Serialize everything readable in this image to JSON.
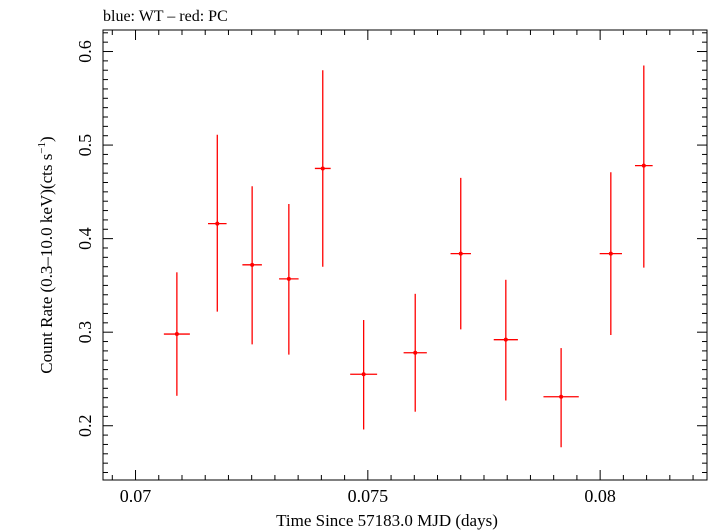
{
  "chart_data": {
    "type": "scatter",
    "title": "blue: WT – red: PC",
    "xlabel": "Time Since 57183.0 MJD (days)",
    "ylabel_main": "Count Rate (0.3–10.0 keV)(cts s",
    "ylabel_sup": "−1",
    "ylabel_end": ")",
    "xlim": [
      0.0693,
      0.0823
    ],
    "ylim": [
      0.142,
      0.623
    ],
    "x_ticks": [
      {
        "value": 0.07,
        "label": "0.07"
      },
      {
        "value": 0.075,
        "label": "0.075"
      },
      {
        "value": 0.08,
        "label": "0.08"
      }
    ],
    "y_ticks": [
      {
        "value": 0.2,
        "label": "0.2"
      },
      {
        "value": 0.3,
        "label": "0.3"
      },
      {
        "value": 0.4,
        "label": "0.4"
      },
      {
        "value": 0.5,
        "label": "0.5"
      },
      {
        "value": 0.6,
        "label": "0.6"
      }
    ],
    "series": [
      {
        "color": "#ff0000",
        "points": [
          {
            "x": 0.07089,
            "xerr": 0.00028,
            "y": 0.298,
            "ylo": 0.232,
            "yhi": 0.364
          },
          {
            "x": 0.07176,
            "xerr": 0.0002,
            "y": 0.416,
            "ylo": 0.322,
            "yhi": 0.511
          },
          {
            "x": 0.07251,
            "xerr": 0.00021,
            "y": 0.372,
            "ylo": 0.287,
            "yhi": 0.456
          },
          {
            "x": 0.0733,
            "xerr": 0.00021,
            "y": 0.357,
            "ylo": 0.276,
            "yhi": 0.437
          },
          {
            "x": 0.07403,
            "xerr": 0.00017,
            "y": 0.475,
            "ylo": 0.37,
            "yhi": 0.58
          },
          {
            "x": 0.07491,
            "xerr": 0.00029,
            "y": 0.255,
            "ylo": 0.196,
            "yhi": 0.313
          },
          {
            "x": 0.07602,
            "xerr": 0.00025,
            "y": 0.278,
            "ylo": 0.215,
            "yhi": 0.341
          },
          {
            "x": 0.077,
            "xerr": 0.00022,
            "y": 0.384,
            "ylo": 0.303,
            "yhi": 0.465
          },
          {
            "x": 0.07797,
            "xerr": 0.00026,
            "y": 0.292,
            "ylo": 0.227,
            "yhi": 0.356
          },
          {
            "x": 0.07916,
            "xerr": 0.00038,
            "y": 0.231,
            "ylo": 0.177,
            "yhi": 0.283
          },
          {
            "x": 0.08023,
            "xerr": 0.00024,
            "y": 0.384,
            "ylo": 0.297,
            "yhi": 0.471
          },
          {
            "x": 0.08094,
            "xerr": 0.00019,
            "y": 0.478,
            "ylo": 0.369,
            "yhi": 0.585
          }
        ]
      }
    ]
  }
}
